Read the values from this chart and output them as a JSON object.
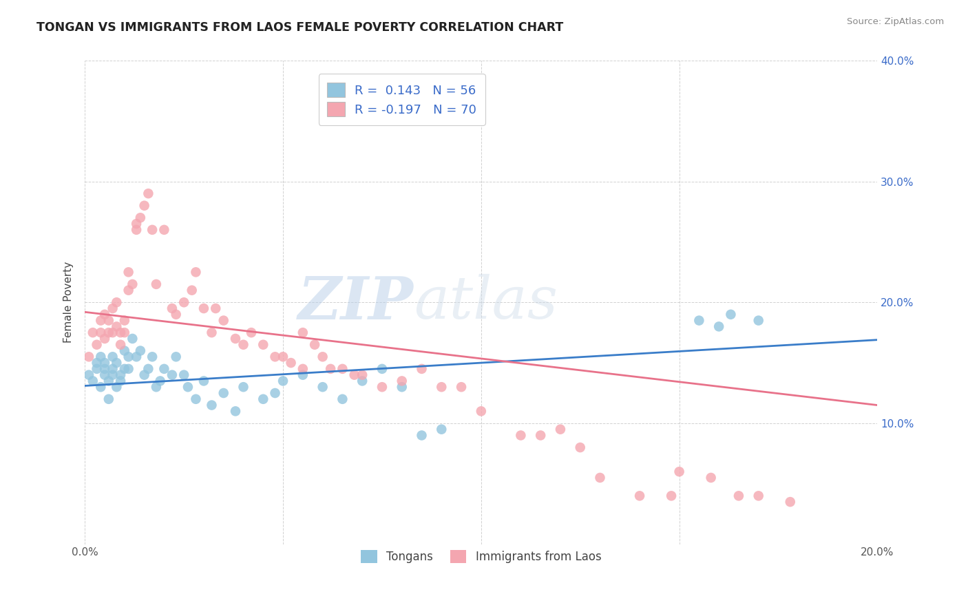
{
  "title": "TONGAN VS IMMIGRANTS FROM LAOS FEMALE POVERTY CORRELATION CHART",
  "source": "Source: ZipAtlas.com",
  "ylabel": "Female Poverty",
  "xmin": 0.0,
  "xmax": 0.2,
  "ymin": 0.0,
  "ymax": 0.4,
  "legend_label1": "R =  0.143   N = 56",
  "legend_label2": "R = -0.197   N = 70",
  "legend_series1": "Tongans",
  "legend_series2": "Immigrants from Laos",
  "blue_color": "#92c5de",
  "pink_color": "#f4a6b0",
  "blue_line_color": "#3a7dc9",
  "pink_line_color": "#e8728a",
  "watermark_zip": "ZIP",
  "watermark_atlas": "atlas",
  "blue_x": [
    0.001,
    0.002,
    0.003,
    0.003,
    0.004,
    0.004,
    0.005,
    0.005,
    0.005,
    0.006,
    0.006,
    0.007,
    0.007,
    0.007,
    0.008,
    0.008,
    0.009,
    0.009,
    0.01,
    0.01,
    0.011,
    0.011,
    0.012,
    0.013,
    0.014,
    0.015,
    0.016,
    0.017,
    0.018,
    0.019,
    0.02,
    0.022,
    0.023,
    0.025,
    0.026,
    0.028,
    0.03,
    0.032,
    0.035,
    0.038,
    0.04,
    0.045,
    0.048,
    0.05,
    0.055,
    0.06,
    0.065,
    0.07,
    0.075,
    0.08,
    0.085,
    0.09,
    0.155,
    0.16,
    0.163,
    0.17
  ],
  "blue_y": [
    0.14,
    0.135,
    0.145,
    0.15,
    0.13,
    0.155,
    0.14,
    0.145,
    0.15,
    0.135,
    0.12,
    0.145,
    0.14,
    0.155,
    0.13,
    0.15,
    0.14,
    0.135,
    0.145,
    0.16,
    0.145,
    0.155,
    0.17,
    0.155,
    0.16,
    0.14,
    0.145,
    0.155,
    0.13,
    0.135,
    0.145,
    0.14,
    0.155,
    0.14,
    0.13,
    0.12,
    0.135,
    0.115,
    0.125,
    0.11,
    0.13,
    0.12,
    0.125,
    0.135,
    0.14,
    0.13,
    0.12,
    0.135,
    0.145,
    0.13,
    0.09,
    0.095,
    0.185,
    0.18,
    0.19,
    0.185
  ],
  "pink_x": [
    0.001,
    0.002,
    0.003,
    0.004,
    0.004,
    0.005,
    0.005,
    0.006,
    0.006,
    0.007,
    0.007,
    0.008,
    0.008,
    0.009,
    0.009,
    0.01,
    0.01,
    0.011,
    0.011,
    0.012,
    0.013,
    0.013,
    0.014,
    0.015,
    0.016,
    0.017,
    0.018,
    0.02,
    0.022,
    0.023,
    0.025,
    0.027,
    0.028,
    0.03,
    0.032,
    0.033,
    0.035,
    0.038,
    0.04,
    0.042,
    0.045,
    0.048,
    0.05,
    0.052,
    0.055,
    0.055,
    0.058,
    0.06,
    0.062,
    0.065,
    0.068,
    0.07,
    0.075,
    0.08,
    0.085,
    0.09,
    0.095,
    0.1,
    0.11,
    0.115,
    0.12,
    0.125,
    0.13,
    0.14,
    0.148,
    0.15,
    0.158,
    0.165,
    0.17,
    0.178
  ],
  "pink_y": [
    0.155,
    0.175,
    0.165,
    0.175,
    0.185,
    0.17,
    0.19,
    0.175,
    0.185,
    0.175,
    0.195,
    0.18,
    0.2,
    0.175,
    0.165,
    0.185,
    0.175,
    0.21,
    0.225,
    0.215,
    0.265,
    0.26,
    0.27,
    0.28,
    0.29,
    0.26,
    0.215,
    0.26,
    0.195,
    0.19,
    0.2,
    0.21,
    0.225,
    0.195,
    0.175,
    0.195,
    0.185,
    0.17,
    0.165,
    0.175,
    0.165,
    0.155,
    0.155,
    0.15,
    0.175,
    0.145,
    0.165,
    0.155,
    0.145,
    0.145,
    0.14,
    0.14,
    0.13,
    0.135,
    0.145,
    0.13,
    0.13,
    0.11,
    0.09,
    0.09,
    0.095,
    0.08,
    0.055,
    0.04,
    0.04,
    0.06,
    0.055,
    0.04,
    0.04,
    0.035
  ]
}
